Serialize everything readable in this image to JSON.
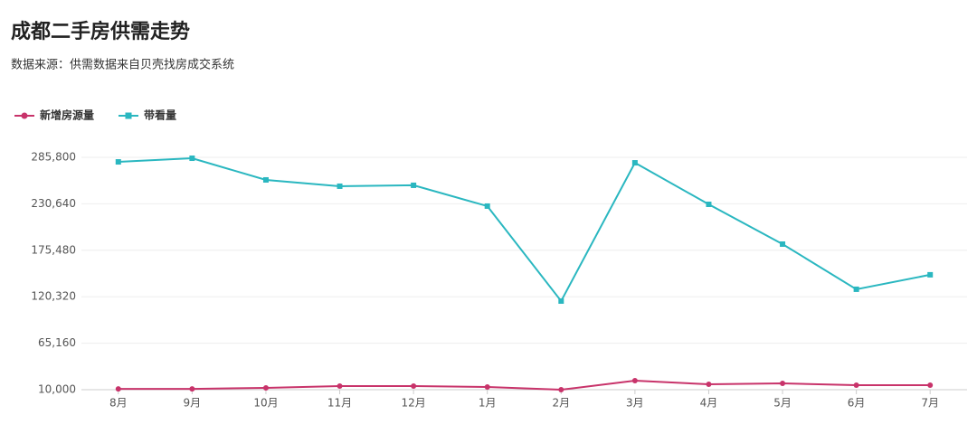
{
  "chart_data": {
    "type": "line",
    "title": "成都二手房供需走势",
    "subtitle": "数据来源：供需数据来自贝壳找房成交系统",
    "categories": [
      "8月",
      "9月",
      "10月",
      "11月",
      "12月",
      "1月",
      "2月",
      "3月",
      "4月",
      "5月",
      "6月",
      "7月"
    ],
    "series": [
      {
        "name": "新增房源量",
        "color": "#c8336a",
        "values": [
          11000,
          11000,
          12100,
          14300,
          14300,
          13200,
          10000,
          20700,
          16400,
          17500,
          15400,
          15400
        ]
      },
      {
        "name": "带看量",
        "color": "#2ab7c0",
        "values": [
          280400,
          284700,
          259000,
          251500,
          252600,
          227900,
          115200,
          279300,
          230000,
          182800,
          129200,
          146400
        ]
      }
    ],
    "ylim": [
      10000,
      285800
    ],
    "yticks": [
      {
        "value": 10000,
        "label": "10,000"
      },
      {
        "value": 65160,
        "label": "65,160"
      },
      {
        "value": 120320,
        "label": "120,320"
      },
      {
        "value": 175480,
        "label": "175,480"
      },
      {
        "value": 230640,
        "label": "230,640"
      },
      {
        "value": 285800,
        "label": "285,800"
      }
    ],
    "grid": true,
    "legend": "top-left"
  }
}
